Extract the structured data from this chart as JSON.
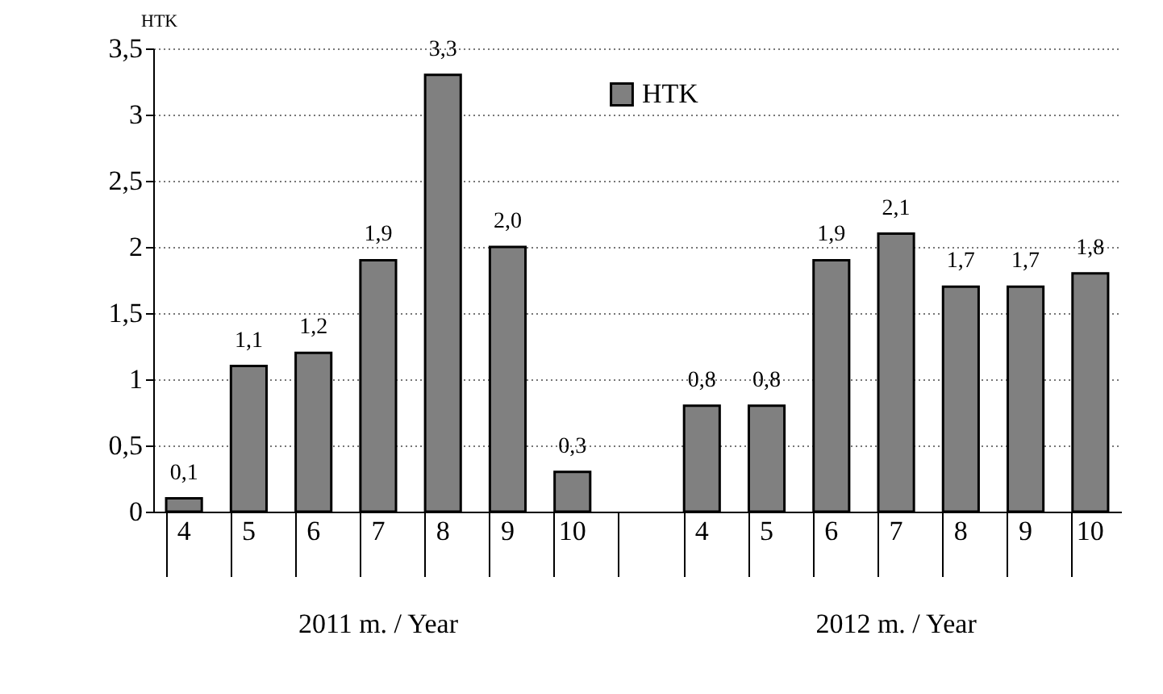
{
  "chart_data": {
    "type": "bar",
    "ylabel": "HTK",
    "categories": [
      "4",
      "5",
      "6",
      "7",
      "8",
      "9",
      "10",
      null,
      "4",
      "5",
      "6",
      "7",
      "8",
      "9",
      "10"
    ],
    "series": [
      {
        "name": "HTK",
        "color": "#808080",
        "values": [
          0.1,
          1.1,
          1.2,
          1.9,
          3.3,
          2.0,
          0.3,
          null,
          0.8,
          0.8,
          1.9,
          2.1,
          1.7,
          1.7,
          1.8
        ],
        "value_labels": [
          "0,1",
          "1,1",
          "1,2",
          "1,9",
          "3,3",
          "2,0",
          "0,3",
          null,
          "0,8",
          "0,8",
          "1,9",
          "2,1",
          "1,7",
          "1,7",
          "1,8"
        ]
      }
    ],
    "ylim": [
      0,
      3.5
    ],
    "yticks": [
      0,
      {
        "value": 0.5,
        "label": "0,5"
      },
      1,
      {
        "value": 1.5,
        "label": "1,5"
      },
      2,
      {
        "value": 2.5,
        "label": "2,5"
      },
      3,
      {
        "value": 3.5,
        "label": "3,5"
      }
    ],
    "grid": "y",
    "legend": "top",
    "annotations": [
      "2011 m. / Year",
      "2012 m. / Year"
    ]
  }
}
